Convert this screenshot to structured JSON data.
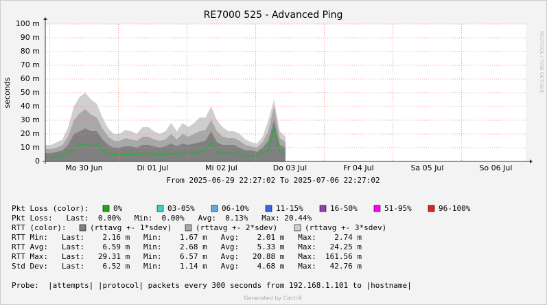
{
  "chart_data": {
    "type": "line",
    "title": "RE7000 525 - Advanced Ping",
    "y_label": "seconds",
    "subtitle": "From 2025-06-29 22:27:02 To 2025-07-06 22:27:02",
    "watermark": "RRDTOOL / TOBI OETIKER",
    "footer": "Generated by Cacti®",
    "xlim": [
      0,
      168
    ],
    "xticks": [
      {
        "value": 1.55,
        "label": "Mo 30 Jun"
      },
      {
        "value": 25.55,
        "label": "Di 01 Jul"
      },
      {
        "value": 49.55,
        "label": "Mi 02 Jul"
      },
      {
        "value": 73.55,
        "label": "Do 03 Jul"
      },
      {
        "value": 97.55,
        "label": "Fr 04 Jul"
      },
      {
        "value": 121.55,
        "label": "Sa 05 Jul"
      },
      {
        "value": 145.55,
        "label": "So 06 Jul"
      }
    ],
    "ylim": [
      0,
      100
    ],
    "yticks": [
      0,
      {
        "value": 10,
        "label": "10 m"
      },
      {
        "value": 20,
        "label": "20 m"
      },
      {
        "value": 30,
        "label": "30 m"
      },
      {
        "value": 40,
        "label": "40 m"
      },
      {
        "value": 50,
        "label": "50 m"
      },
      {
        "value": 60,
        "label": "60 m"
      },
      {
        "value": 70,
        "label": "70 m"
      },
      {
        "value": 80,
        "label": "80 m"
      },
      {
        "value": 90,
        "label": "90 m"
      },
      {
        "value": 100,
        "label": "100 m"
      }
    ],
    "grid": true,
    "x": [
      0,
      2,
      4,
      6,
      8,
      10,
      12,
      14,
      16,
      18,
      20,
      22,
      24,
      26,
      28,
      30,
      32,
      34,
      36,
      38,
      40,
      42,
      44,
      46,
      48,
      50,
      52,
      54,
      56,
      58,
      60,
      62,
      64,
      66,
      68,
      70,
      72,
      74,
      76,
      78,
      80,
      82,
      84
    ],
    "series": [
      {
        "name": "(rttavg +- 3*sdev)",
        "color": "#cfcfcf",
        "fill": true,
        "values": [
          12,
          12,
          14,
          16,
          25,
          40,
          47,
          50,
          45,
          42,
          32,
          24,
          20,
          20,
          23,
          22,
          20,
          25,
          25,
          22,
          20,
          22,
          28,
          22,
          28,
          25,
          28,
          32,
          32,
          40,
          30,
          25,
          22,
          22,
          20,
          16,
          14,
          13,
          18,
          30,
          45,
          22,
          18
        ]
      },
      {
        "name": "(rttavg +- 2*sdev)",
        "color": "#a8a8a8",
        "fill": true,
        "values": [
          9,
          9,
          10,
          12,
          18,
          30,
          35,
          38,
          34,
          32,
          24,
          18,
          15,
          15,
          17,
          16,
          15,
          18,
          18,
          16,
          15,
          16,
          20,
          16,
          20,
          18,
          20,
          22,
          23,
          30,
          22,
          18,
          17,
          17,
          15,
          12,
          11,
          10,
          14,
          22,
          40,
          17,
          14
        ]
      },
      {
        "name": "(rttavg +- 1*sdev)",
        "color": "#808080",
        "fill": true,
        "values": [
          6,
          6,
          7,
          8,
          12,
          20,
          22,
          24,
          22,
          22,
          16,
          12,
          10,
          10,
          11,
          11,
          10,
          12,
          12,
          11,
          10,
          11,
          13,
          11,
          13,
          12,
          13,
          14,
          15,
          22,
          14,
          12,
          12,
          12,
          10,
          8,
          8,
          7,
          10,
          15,
          30,
          12,
          10
        ]
      },
      {
        "color": "#22b03c",
        "fill": false,
        "values": [
          3,
          3,
          3,
          4,
          6,
          10,
          12,
          13,
          11,
          12,
          8,
          6,
          5,
          5,
          5,
          5,
          5,
          6,
          6,
          5,
          5,
          5,
          6,
          5,
          6,
          6,
          6,
          7,
          8,
          14,
          7,
          6,
          6,
          6,
          5,
          4,
          4,
          4,
          6,
          8,
          24,
          7,
          6
        ]
      }
    ],
    "loss_legend": {
      "label": "Pkt Loss (color):",
      "items": [
        {
          "name": "0%",
          "color": "#1ea81e"
        },
        {
          "name": "03-05%",
          "color": "#40d0c8"
        },
        {
          "name": "06-10%",
          "color": "#60a8e0"
        },
        {
          "name": "11-15%",
          "color": "#3a66e0"
        },
        {
          "name": "16-50%",
          "color": "#9040b0"
        },
        {
          "name": "51-95%",
          "color": "#ff00ff"
        },
        {
          "name": "96-100%",
          "color": "#e02020"
        }
      ]
    },
    "rtt_legend_label": "RTT (color):",
    "stats_lines": [
      "Pkt Loss:   Last:  0.00%   Min:  0.00%   Avg:  0.13%   Max: 20.44%",
      "RTT Min:   Last:    2.16 m   Min:    1.67 m   Avg:    2.01 m   Max:    2.74 m",
      "RTT Avg:   Last:    6.59 m   Min:    2.68 m   Avg:    5.33 m   Max:   24.25 m",
      "RTT Max:   Last:   29.31 m   Min:    6.57 m   Avg:   20.88 m   Max:  161.56 m",
      "Std Dev:   Last:    6.52 m   Min:    1.14 m   Avg:    4.68 m   Max:   42.76 m"
    ],
    "probe_line": "Probe:  |attempts| |protocol| packets every 300 seconds from 192.168.1.101 to |hostname|"
  }
}
